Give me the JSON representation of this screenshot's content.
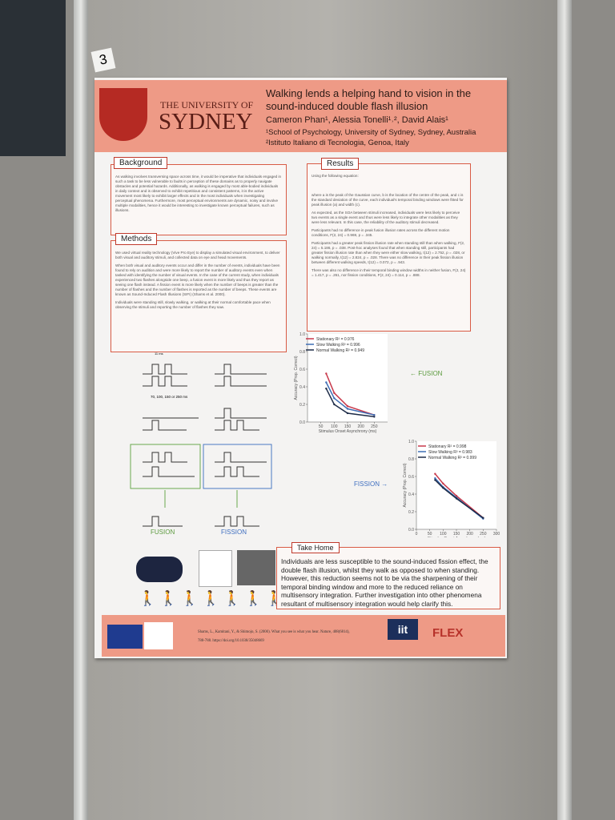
{
  "poster_number": "3",
  "header": {
    "university_top": "THE UNIVERSITY OF",
    "university": "SYDNEY",
    "title": "Walking lends a helping hand to vision in the sound-induced double flash illusion",
    "authors": "Cameron Phan¹, Alessia Tonelli¹˒², David Alais¹",
    "affiliations": [
      "¹School of Psychology, University of Sydney, Sydney, Australia",
      "²Istituto Italiano di Tecnologia, Genoa, Italy"
    ]
  },
  "background": {
    "heading": "Background",
    "text": "As walking involves transversing space across time, it would be imperative that individuals engaged in such a task to be less vulnerable to faults in perception of these domains as to properly navigate obstacles and potential hazards. Additionally, as walking is engaged by most able-bodied individuals in daily context and is observed to exhibit repetitious and consistent patterns, it is the active movement most likely to exhibit larger effects and in the most individuals when investigating perceptual phenomena. Furthermore, most perceptual environments are dynamic, noisy and involve multiple modalities, hence it would be interesting to investigate known perceptual failures, such as illusions."
  },
  "methods": {
    "heading": "Methods",
    "paragraphs": [
      "We used virtual reality technology (Vive Pro Eye) to display a simulated visual environment, to deliver both visual and auditory stimuli, and collected data on eye and head movements.",
      "When both visual and auditory events occur and differ in the number of events, individuals have been found to rely on audition and were more likely to report the number of auditory events even when tasked with identifying the number of visual events. In the case of the current study, when individuals experienced two flashes alongside one beep, a fusion event is more likely and thus they report as seeing one flash instead. A fission event is more likely when the number of beeps is greater than the number of flashes and the number of flashes is reported as the number of beeps. These events are known as Sound-Induced Flash Illusions (SIFI) (Shams et al. 2000).",
      "Individuals were standing still, slowly walking, or walking at their normal comfortable pace when observing the stimuli and reporting the number of flashes they saw."
    ]
  },
  "results": {
    "heading": "Results",
    "paragraphs": [
      "Using the following equation:",
      "where a is the peak of the Gaussian curve, b is the location of the centre of the peak, and c is the standard deviation of the curve, each individual's temporal binding windows were fitted for peak illusion (a) and width (c).",
      "As expected, as the SOA between stimuli increased, individuals were less likely to perceive two events as a single event and thus were less likely to integrate other modalities as they were less relevant. In this case, the reliability of the auditory stimuli decreased.",
      "Participants had no difference in peak fusion illusion rates across the different motion conditions, F(2, 24) = 0.969, p = .345.",
      "Participants had a greater peak fission illusion rate when standing still than when walking, F(2, 24) = 5.186, p = .038. Post-hoc analyses found that when standing still, participants had greater fission illusion rate than when they were either slow walking, t(12) = 2.752, p = .028, or walking normally, t(12) = 2.824, p = .028. There was no difference in their peak fission illusion between different walking speeds, t(12) = 0.072, p = .943.",
      "There was also no difference in their temporal binding window widths in neither fusion, F(2, 24) = 1.417, p = .261, nor fission conditions, F(2, 24) = 0.114, p = .888."
    ]
  },
  "diagram": {
    "flash_time": "11 ms",
    "soa": "70, 100, 150 or 250 ms",
    "fusion": "FUSION",
    "fission": "FISSION"
  },
  "charts": [
    {
      "type": "line",
      "label": "← FUSION",
      "x_label": "Stimulus Onset Asynchrony (ms)",
      "y_label": "Accuracy (Prop. Correct)",
      "x": [
        70,
        100,
        150,
        250
      ],
      "xlim": [
        0,
        300
      ],
      "ylim": [
        0,
        1
      ],
      "xticks": [
        50,
        100,
        150,
        200,
        250
      ],
      "yticks": [
        {
          "value": 0,
          "label": "0.0"
        },
        0.2,
        0.4,
        0.6,
        0.8,
        {
          "value": 1,
          "label": "1.0"
        }
      ],
      "series": [
        {
          "name": "Stationary R² = 0.976",
          "color": "#c8384a",
          "values": [
            0.55,
            0.33,
            0.18,
            0.08
          ]
        },
        {
          "name": "Slow Walking R² = 0.996",
          "color": "#3e6db4",
          "values": [
            0.45,
            0.27,
            0.15,
            0.08
          ]
        },
        {
          "name": "Normal Walking R² = 0.949",
          "color": "#1e2c48",
          "values": [
            0.38,
            0.2,
            0.1,
            0.06
          ]
        }
      ]
    },
    {
      "type": "line",
      "label": "FISSION →",
      "x_label": "Stimulus Onset Asynchrony (ms)",
      "y_label": "Accuracy (Prop. Correct)",
      "x": [
        70,
        100,
        150,
        250
      ],
      "xlim": [
        0,
        300
      ],
      "ylim": [
        0,
        1
      ],
      "xticks": [
        0,
        50,
        100,
        150,
        200,
        250,
        300
      ],
      "yticks": [
        {
          "value": 0,
          "label": "0.0"
        },
        0.2,
        0.4,
        0.6,
        0.8,
        {
          "value": 1,
          "label": "1.0"
        }
      ],
      "series": [
        {
          "name": "Stationary R² = 0.998",
          "color": "#c8384a",
          "values": [
            0.63,
            0.52,
            0.38,
            0.13
          ]
        },
        {
          "name": "Slow Walking R² = 0.983",
          "color": "#3e6db4",
          "values": [
            0.58,
            0.48,
            0.36,
            0.12
          ]
        },
        {
          "name": "Normal Walking R² = 0.999",
          "color": "#1e2c48",
          "values": [
            0.56,
            0.47,
            0.35,
            0.13
          ]
        }
      ]
    }
  ],
  "take_home": {
    "heading": "Take Home",
    "text": "Individuals are less susceptible to the sound-induced fission effect, the double flash illusion, whilst they walk as opposed to when standing. However, this reduction seems not to be via the sharpening of their temporal binding window and more to the reduced reliance on multisensory integration. Further investigation into other phenomena resultant of multisensory integration would help clarify this."
  },
  "footer": {
    "reference": "Shams, L., Kamitani, Y., & Shimojo, S. (2000). What you see is what you hear. Nature, 408(6814), 788-788. https://doi.org/10.1038/35048669",
    "logo_iit": "iit",
    "logo_flex": "FLEX"
  }
}
